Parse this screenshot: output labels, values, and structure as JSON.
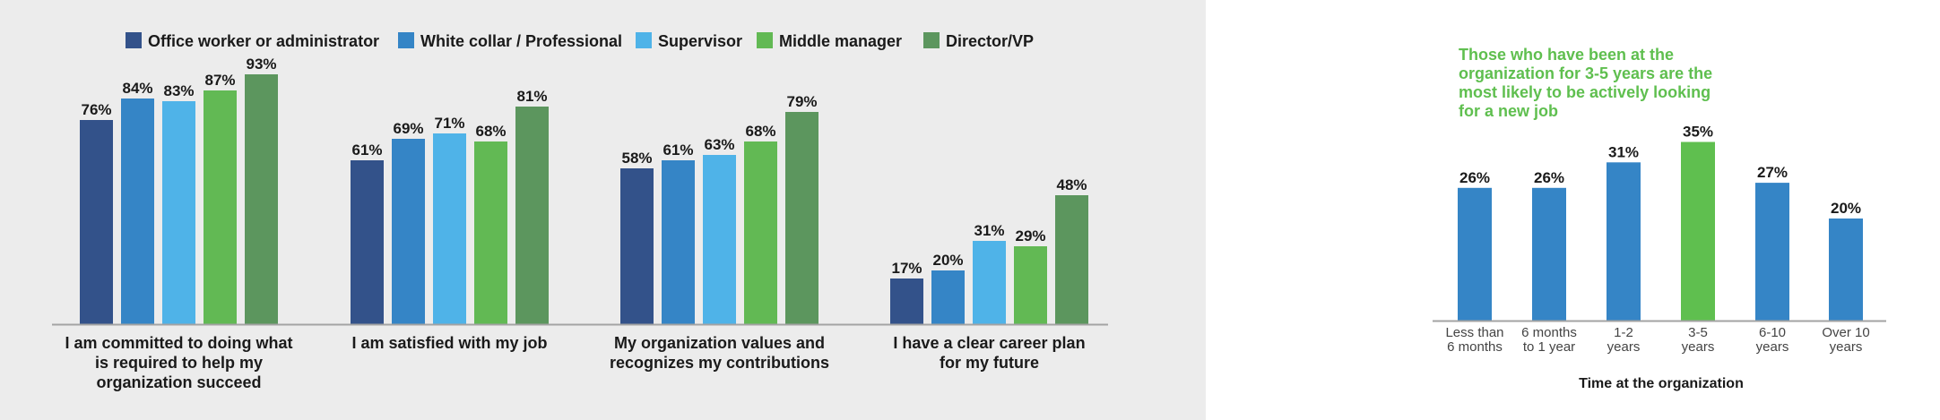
{
  "colors": {
    "office_worker": "#33528a",
    "white_collar": "#3585c6",
    "supervisor": "#4fb3e8",
    "middle_manager": "#62b954",
    "director_vp": "#5c965e",
    "highlight_green": "#5fbf4f",
    "right_bar": "#3585c6",
    "axis": "#999999",
    "panel_bg": "#ececec"
  },
  "chart_data": [
    {
      "type": "bar",
      "legend_position": "top",
      "categories": [
        "I am committed to doing what is required to help my organization succeed",
        "I am satisfied with my job",
        "My organization values and recognizes my contributions",
        "I have a clear career plan for my future"
      ],
      "category_lines": [
        [
          "I am committed to doing what",
          "is required to help my",
          "organization succeed"
        ],
        [
          "I am satisfied with my job"
        ],
        [
          "My organization values and",
          "recognizes my contributions"
        ],
        [
          "I have a clear career plan",
          "for my future"
        ]
      ],
      "series": [
        {
          "name": "Office worker or administrator",
          "color": "#33528a",
          "values": [
            76,
            61,
            58,
            17
          ]
        },
        {
          "name": "White collar / Professional",
          "color": "#3585c6",
          "values": [
            84,
            69,
            61,
            20
          ]
        },
        {
          "name": "Supervisor",
          "color": "#4fb3e8",
          "values": [
            83,
            71,
            63,
            31
          ]
        },
        {
          "name": "Middle manager",
          "color": "#62b954",
          "values": [
            87,
            68,
            68,
            29
          ]
        },
        {
          "name": "Director/VP",
          "color": "#5c965e",
          "values": [
            93,
            81,
            79,
            48
          ]
        }
      ],
      "value_suffix": "%",
      "ylim": [
        0,
        100
      ],
      "grid": false
    },
    {
      "type": "bar",
      "annotation_lines": [
        "Those who have been at the",
        "organization for 3-5 years are the",
        "most likely to be actively looking",
        "for a new job"
      ],
      "categories": [
        "Less than 6 months",
        "6 months to 1 year",
        "1-2 years",
        "3-5 years",
        "6-10 years",
        "Over 10 years"
      ],
      "category_lines": [
        [
          "Less than",
          "6 months"
        ],
        [
          "6 months",
          "to 1 year"
        ],
        [
          "1-2",
          "years"
        ],
        [
          "3-5",
          "years"
        ],
        [
          "6-10",
          "years"
        ],
        [
          "Over 10",
          "years"
        ]
      ],
      "values": [
        26,
        26,
        31,
        35,
        27,
        20
      ],
      "highlight_index": 3,
      "value_suffix": "%",
      "xlabel": "Time at the organization",
      "ylabel": "",
      "ylim": [
        0,
        40
      ],
      "grid": false
    }
  ]
}
